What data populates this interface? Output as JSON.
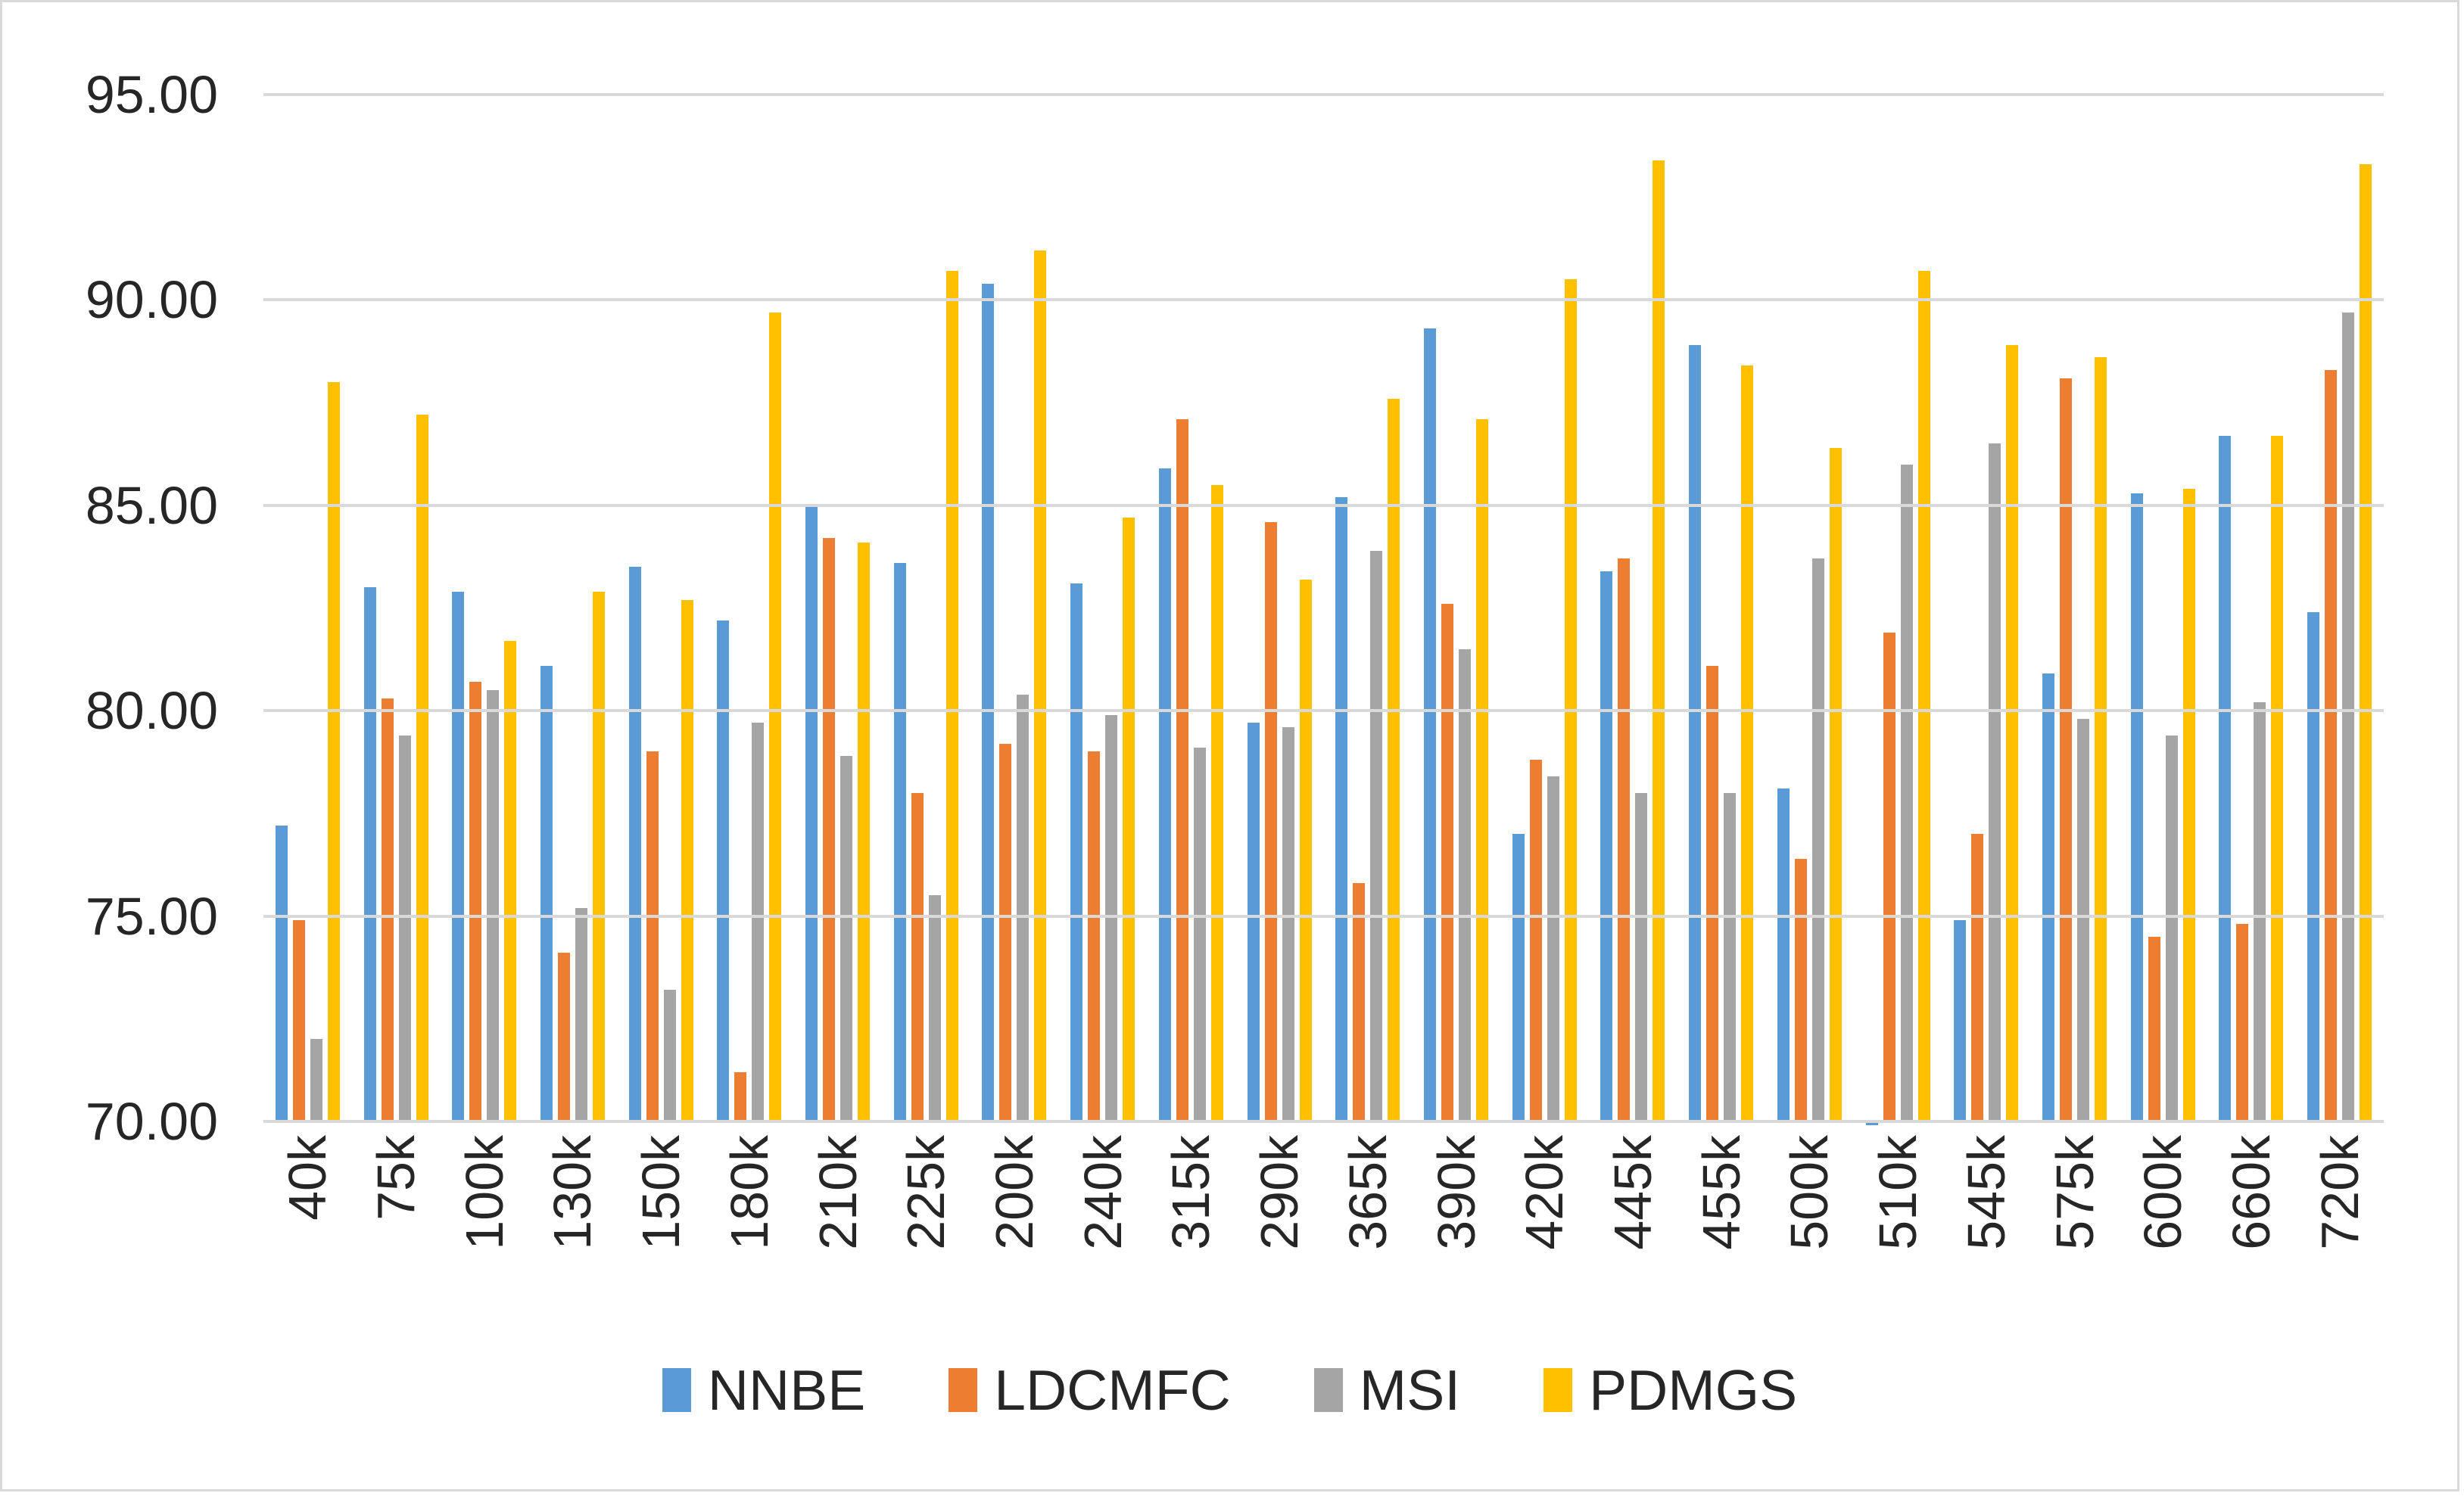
{
  "chart_data": {
    "type": "bar",
    "title": "",
    "xlabel": "",
    "ylabel": "",
    "ylim": [
      70,
      95
    ],
    "y_tick_step": 5,
    "y_tick_labels": [
      "95.00",
      "90.00",
      "85.00",
      "80.00",
      "75.00",
      "70.00"
    ],
    "y_tick_values": [
      95,
      90,
      85,
      80,
      75,
      70
    ],
    "grid": "horizontal",
    "legend_position": "bottom",
    "categories": [
      "40k",
      "75k",
      "100k",
      "130k",
      "150k",
      "180k",
      "210k",
      "225k",
      "200k",
      "240k",
      "315k",
      "290k",
      "365k",
      "390k",
      "420k",
      "445k",
      "455k",
      "500k",
      "510k",
      "545k",
      "575k",
      "600k",
      "660k",
      "720k"
    ],
    "series": [
      {
        "name": "NNBE",
        "color": "#5b9bd5",
        "values": [
          77.2,
          83.0,
          82.9,
          81.1,
          83.5,
          82.2,
          85.0,
          83.6,
          90.4,
          83.1,
          85.9,
          79.7,
          85.2,
          89.3,
          77.0,
          83.4,
          88.9,
          78.1,
          69.9,
          74.9,
          80.9,
          85.3,
          86.7,
          82.4
        ]
      },
      {
        "name": "LDCMFC",
        "color": "#ed7d31",
        "values": [
          74.9,
          80.3,
          80.7,
          74.1,
          79.0,
          71.2,
          84.2,
          78.0,
          79.2,
          79.0,
          87.1,
          84.6,
          75.8,
          82.6,
          78.8,
          83.7,
          81.1,
          76.4,
          81.9,
          77.0,
          88.1,
          74.5,
          74.8,
          88.3
        ]
      },
      {
        "name": "MSI",
        "color": "#a5a5a5",
        "values": [
          72.0,
          79.4,
          80.5,
          75.2,
          73.2,
          79.7,
          78.9,
          75.5,
          80.4,
          79.9,
          79.1,
          79.6,
          83.9,
          81.5,
          78.4,
          78.0,
          78.0,
          83.7,
          86.0,
          86.5,
          79.8,
          79.4,
          80.2,
          89.7
        ]
      },
      {
        "name": "PDMGS",
        "color": "#ffc000",
        "values": [
          88.0,
          87.2,
          81.7,
          82.9,
          82.7,
          89.7,
          84.1,
          90.7,
          91.2,
          84.7,
          85.5,
          83.2,
          87.6,
          87.1,
          90.5,
          93.4,
          88.4,
          86.4,
          90.7,
          88.9,
          88.6,
          85.4,
          86.7,
          93.3
        ]
      }
    ],
    "colors": {
      "gridline": "#d9d9d9",
      "axis_text": "#262626",
      "frame_border": "#d9d9d9",
      "background": "#ffffff"
    }
  }
}
